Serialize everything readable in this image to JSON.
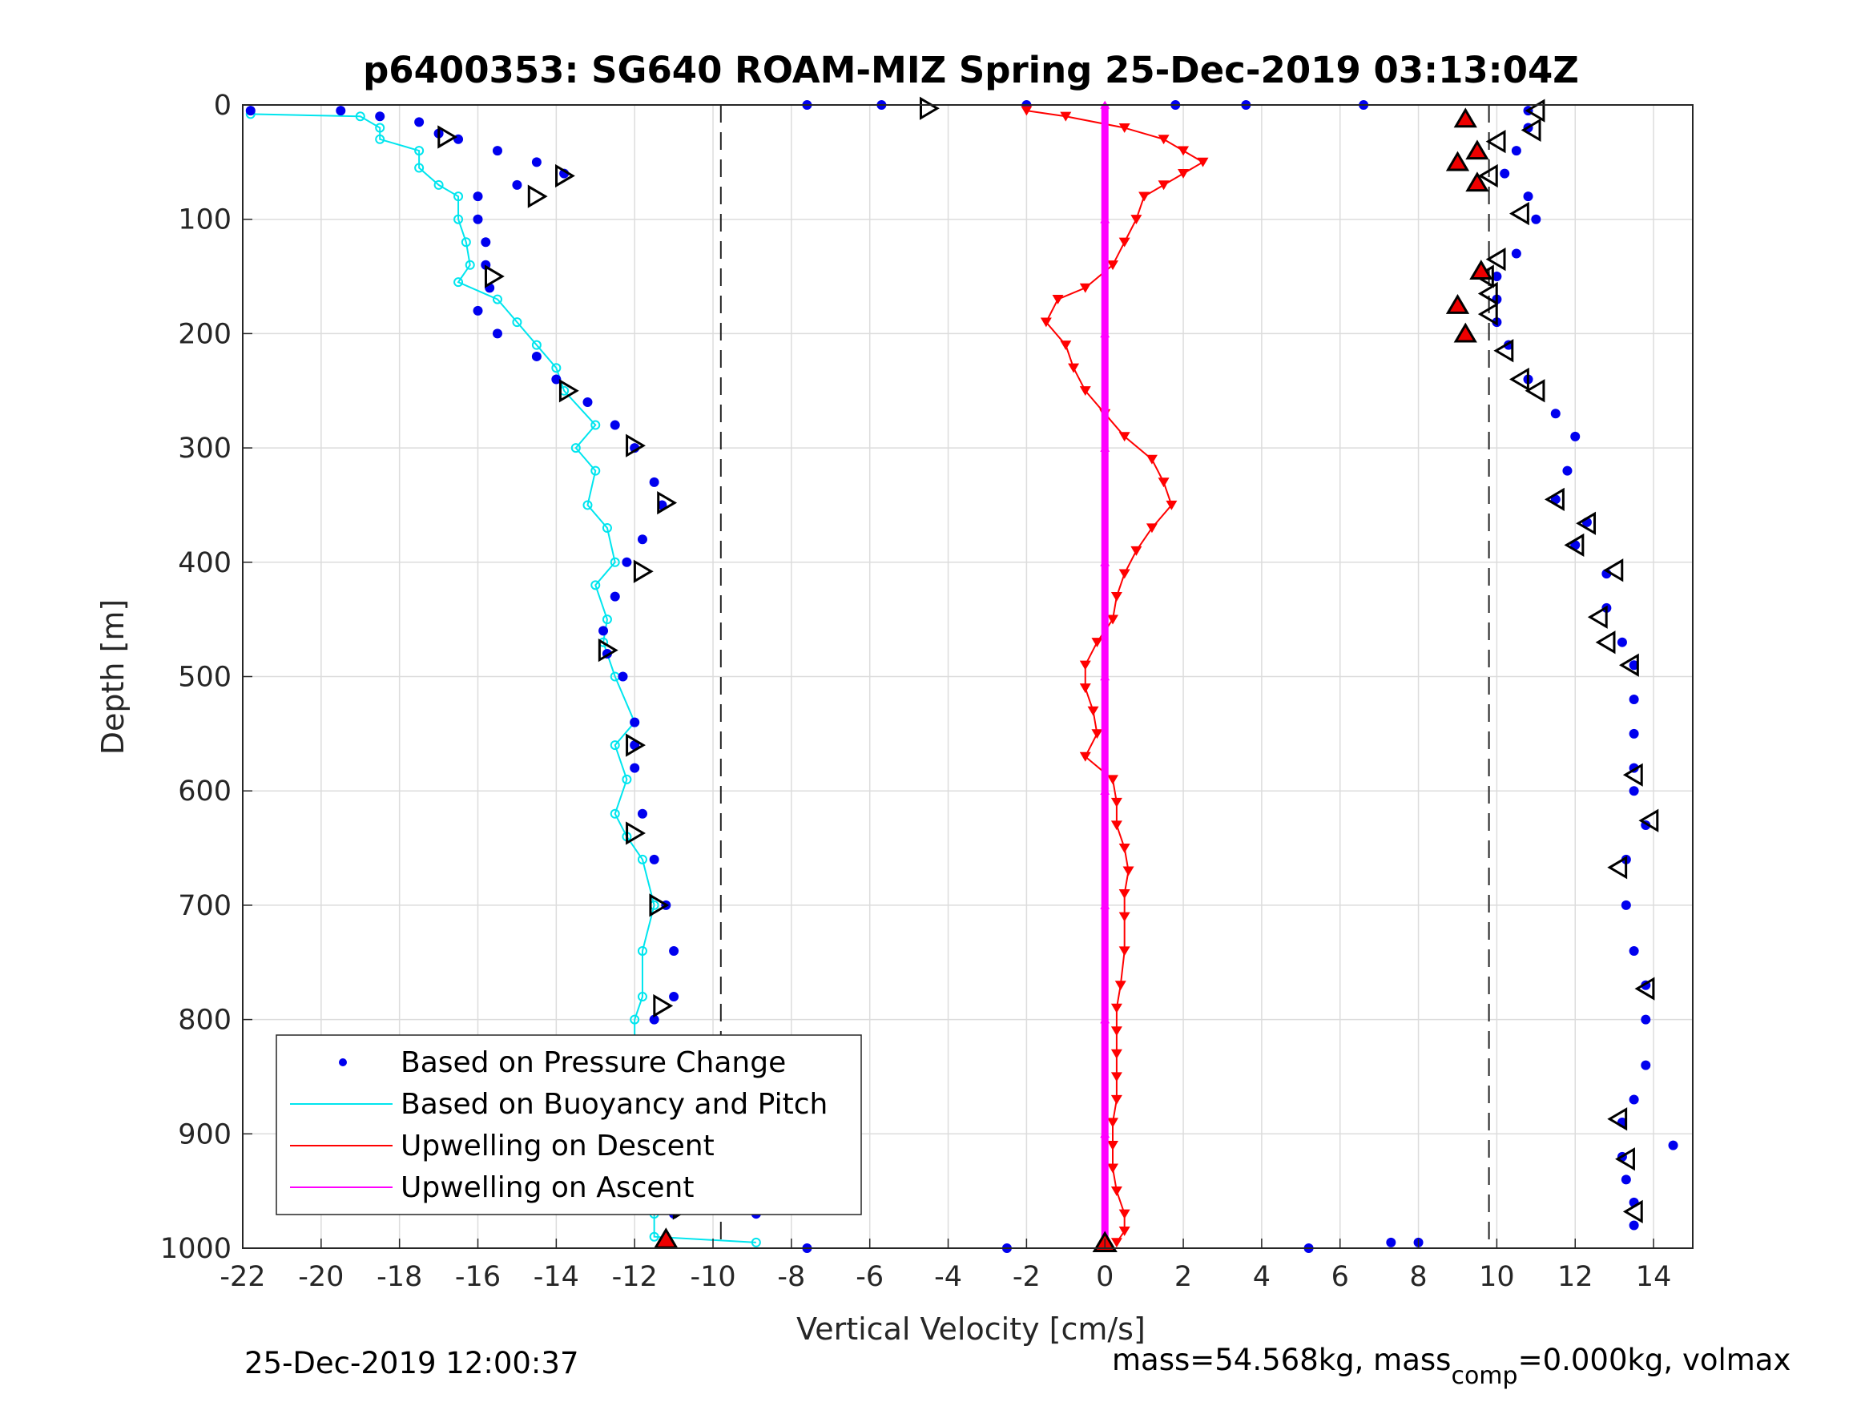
{
  "chart_data": {
    "type": "scatter",
    "title": "p6400353: SG640 ROAM-MIZ Spring 25-Dec-2019 03:13:04Z",
    "xlabel": "Vertical Velocity [cm/s]",
    "ylabel": "Depth [m]",
    "xlim": [
      -22,
      15
    ],
    "ylim": [
      1000,
      0
    ],
    "y_reversed": true,
    "grid": true,
    "x_ticks": [
      -22,
      -20,
      -18,
      -16,
      -14,
      -12,
      -10,
      -8,
      -6,
      -4,
      -2,
      0,
      2,
      4,
      6,
      8,
      10,
      12,
      14
    ],
    "x_tick_labels": [
      "-22",
      "-20",
      "-18",
      "-16",
      "-14",
      "-12",
      "-10",
      "-8",
      "-6",
      "-4",
      "-2",
      "0",
      "2",
      "4",
      "6",
      "8",
      "10",
      "12",
      "14"
    ],
    "y_ticks": [
      0,
      100,
      200,
      300,
      400,
      500,
      600,
      700,
      800,
      900,
      1000
    ],
    "y_tick_labels": [
      "0",
      "100",
      "200",
      "300",
      "400",
      "500",
      "600",
      "700",
      "800",
      "900",
      "1000"
    ],
    "reference_lines_x": [
      -9.8,
      9.8
    ],
    "legend_position": "lower-left",
    "series": [
      {
        "name": "Based on Pressure Change",
        "style": "dots",
        "color": "#0000ee",
        "descent": [
          [
            -19.5,
            5
          ],
          [
            -18.5,
            10
          ],
          [
            -17.5,
            15
          ],
          [
            -17,
            25
          ],
          [
            -16.5,
            30
          ],
          [
            -15.5,
            40
          ],
          [
            -14.5,
            50
          ],
          [
            -13.8,
            60
          ],
          [
            -15,
            70
          ],
          [
            -16,
            80
          ],
          [
            -16,
            100
          ],
          [
            -15.8,
            120
          ],
          [
            -15.8,
            140
          ],
          [
            -15.7,
            160
          ],
          [
            -16,
            180
          ],
          [
            -15.5,
            200
          ],
          [
            -14.5,
            220
          ],
          [
            -14,
            240
          ],
          [
            -13.2,
            260
          ],
          [
            -12.5,
            280
          ],
          [
            -12,
            300
          ],
          [
            -11.5,
            330
          ],
          [
            -11.3,
            350
          ],
          [
            -11.8,
            380
          ],
          [
            -12.2,
            400
          ],
          [
            -12.5,
            430
          ],
          [
            -12.8,
            460
          ],
          [
            -12.7,
            480
          ],
          [
            -12.3,
            500
          ],
          [
            -12,
            540
          ],
          [
            -12,
            560
          ],
          [
            -12,
            580
          ],
          [
            -11.8,
            620
          ],
          [
            -11.5,
            660
          ],
          [
            -11.2,
            700
          ],
          [
            -11,
            740
          ],
          [
            -11,
            780
          ],
          [
            -11.5,
            800
          ],
          [
            -11.8,
            830
          ],
          [
            -11.8,
            860
          ],
          [
            -11.5,
            900
          ],
          [
            -11.2,
            940
          ],
          [
            -11,
            970
          ],
          [
            -11.2,
            995
          ]
        ],
        "ascent": [
          [
            10.8,
            5
          ],
          [
            10.8,
            20
          ],
          [
            10.5,
            40
          ],
          [
            10.2,
            60
          ],
          [
            10.8,
            80
          ],
          [
            11,
            100
          ],
          [
            10.5,
            130
          ],
          [
            10,
            150
          ],
          [
            10,
            170
          ],
          [
            10,
            190
          ],
          [
            10.3,
            210
          ],
          [
            10.8,
            240
          ],
          [
            11.5,
            270
          ],
          [
            12,
            290
          ],
          [
            11.8,
            320
          ],
          [
            11.5,
            345
          ],
          [
            12.3,
            365
          ],
          [
            12,
            385
          ],
          [
            12.8,
            410
          ],
          [
            12.8,
            440
          ],
          [
            13.2,
            470
          ],
          [
            13.5,
            490
          ],
          [
            13.5,
            520
          ],
          [
            13.5,
            550
          ],
          [
            13.5,
            580
          ],
          [
            13.5,
            600
          ],
          [
            13.8,
            630
          ],
          [
            13.3,
            660
          ],
          [
            13.3,
            700
          ],
          [
            13.5,
            740
          ],
          [
            13.8,
            770
          ],
          [
            13.8,
            800
          ],
          [
            13.8,
            840
          ],
          [
            13.5,
            870
          ],
          [
            13.2,
            890
          ],
          [
            13.2,
            920
          ],
          [
            13.3,
            940
          ],
          [
            13.5,
            960
          ],
          [
            13.5,
            980
          ]
        ],
        "surface_outliers": [
          [
            -21.8,
            5
          ],
          [
            -7.6,
            0
          ],
          [
            -5.7,
            0
          ],
          [
            -2,
            0
          ],
          [
            1.8,
            0
          ],
          [
            3.6,
            0
          ],
          [
            6.6,
            0
          ],
          [
            -2.5,
            1000
          ],
          [
            5.2,
            1000
          ],
          [
            7.3,
            995
          ],
          [
            8,
            995
          ],
          [
            14.5,
            910
          ],
          [
            -8.9,
            970
          ],
          [
            -7.6,
            1000
          ]
        ]
      },
      {
        "name": "Based on Buoyancy and Pitch",
        "style": "line-circles",
        "color": "#00e5ee",
        "values": [
          [
            -21.8,
            8
          ],
          [
            -19,
            10
          ],
          [
            -18.5,
            20
          ],
          [
            -18.5,
            30
          ],
          [
            -17.5,
            40
          ],
          [
            -17.5,
            55
          ],
          [
            -17,
            70
          ],
          [
            -16.5,
            80
          ],
          [
            -16.5,
            100
          ],
          [
            -16.3,
            120
          ],
          [
            -16.2,
            140
          ],
          [
            -16.5,
            155
          ],
          [
            -15.5,
            170
          ],
          [
            -15,
            190
          ],
          [
            -14.5,
            210
          ],
          [
            -14,
            230
          ],
          [
            -13.8,
            250
          ],
          [
            -13,
            280
          ],
          [
            -13.5,
            300
          ],
          [
            -13,
            320
          ],
          [
            -13.2,
            350
          ],
          [
            -12.7,
            370
          ],
          [
            -12.5,
            400
          ],
          [
            -13,
            420
          ],
          [
            -12.7,
            450
          ],
          [
            -12.8,
            470
          ],
          [
            -12.5,
            500
          ],
          [
            -12,
            540
          ],
          [
            -12.5,
            560
          ],
          [
            -12.2,
            590
          ],
          [
            -12.5,
            620
          ],
          [
            -12.2,
            640
          ],
          [
            -11.8,
            660
          ],
          [
            -11.5,
            700
          ],
          [
            -11.8,
            740
          ],
          [
            -11.8,
            780
          ],
          [
            -12,
            800
          ],
          [
            -12,
            840
          ],
          [
            -11.8,
            860
          ],
          [
            -11.5,
            900
          ],
          [
            -11.5,
            940
          ],
          [
            -11.5,
            970
          ],
          [
            -11.5,
            990
          ],
          [
            -8.9,
            995
          ]
        ]
      },
      {
        "name": "Upwelling on Descent",
        "style": "line-triangles-down",
        "color": "#ff0000",
        "values": [
          [
            -2,
            5
          ],
          [
            -1,
            10
          ],
          [
            0.5,
            20
          ],
          [
            1.5,
            30
          ],
          [
            2,
            40
          ],
          [
            2.5,
            50
          ],
          [
            2,
            60
          ],
          [
            1.5,
            70
          ],
          [
            1,
            80
          ],
          [
            0.8,
            100
          ],
          [
            0.5,
            120
          ],
          [
            0.2,
            140
          ],
          [
            -0.5,
            160
          ],
          [
            -1.2,
            170
          ],
          [
            -1.5,
            190
          ],
          [
            -1,
            210
          ],
          [
            -0.8,
            230
          ],
          [
            -0.5,
            250
          ],
          [
            0,
            270
          ],
          [
            0.5,
            290
          ],
          [
            1.2,
            310
          ],
          [
            1.5,
            330
          ],
          [
            1.7,
            350
          ],
          [
            1.2,
            370
          ],
          [
            0.8,
            390
          ],
          [
            0.5,
            410
          ],
          [
            0.3,
            430
          ],
          [
            0.2,
            450
          ],
          [
            -0.2,
            470
          ],
          [
            -0.5,
            490
          ],
          [
            -0.5,
            510
          ],
          [
            -0.3,
            530
          ],
          [
            -0.2,
            550
          ],
          [
            -0.5,
            570
          ],
          [
            0.2,
            590
          ],
          [
            0.3,
            610
          ],
          [
            0.3,
            630
          ],
          [
            0.5,
            650
          ],
          [
            0.6,
            670
          ],
          [
            0.5,
            690
          ],
          [
            0.5,
            710
          ],
          [
            0.5,
            740
          ],
          [
            0.4,
            770
          ],
          [
            0.3,
            790
          ],
          [
            0.3,
            810
          ],
          [
            0.3,
            830
          ],
          [
            0.3,
            850
          ],
          [
            0.3,
            870
          ],
          [
            0.2,
            890
          ],
          [
            0.2,
            910
          ],
          [
            0.2,
            930
          ],
          [
            0.3,
            950
          ],
          [
            0.5,
            970
          ],
          [
            0.5,
            985
          ],
          [
            0.3,
            995
          ]
        ]
      },
      {
        "name": "Upwelling on Ascent",
        "style": "line-triangles-up",
        "color": "#ff00ff",
        "values": [
          [
            0,
            0
          ],
          [
            0,
            100
          ],
          [
            0,
            200
          ],
          [
            0,
            300
          ],
          [
            0,
            400
          ],
          [
            0,
            500
          ],
          [
            0,
            600
          ],
          [
            0,
            700
          ],
          [
            0,
            800
          ],
          [
            0,
            900
          ],
          [
            0,
            1000
          ]
        ]
      }
    ],
    "markers": {
      "open_triangles_descent": [
        [
          -4.5,
          3
        ],
        [
          -16.8,
          28
        ],
        [
          -13.8,
          62
        ],
        [
          -14.5,
          80
        ],
        [
          -15.6,
          150
        ],
        [
          -13.7,
          250
        ],
        [
          -12,
          298
        ],
        [
          -11.2,
          348
        ],
        [
          -11.8,
          408
        ],
        [
          -12.7,
          477
        ],
        [
          -12,
          560
        ],
        [
          -12,
          637
        ],
        [
          -11.4,
          700
        ],
        [
          -11.3,
          788
        ],
        [
          -11.5,
          877
        ],
        [
          -10.8,
          965
        ]
      ],
      "open_triangles_ascent": [
        [
          11,
          5
        ],
        [
          10.9,
          22
        ],
        [
          10,
          32
        ],
        [
          9.8,
          62
        ],
        [
          10.6,
          95
        ],
        [
          10,
          135
        ],
        [
          9.7,
          150
        ],
        [
          9.8,
          165
        ],
        [
          9.8,
          183
        ],
        [
          10.2,
          215
        ],
        [
          10.6,
          240
        ],
        [
          11,
          250
        ],
        [
          11.5,
          345
        ],
        [
          12.3,
          366
        ],
        [
          12,
          385
        ],
        [
          13,
          407
        ],
        [
          12.6,
          448
        ],
        [
          12.8,
          470
        ],
        [
          13.4,
          490
        ],
        [
          13.5,
          586
        ],
        [
          13.9,
          626
        ],
        [
          13.1,
          667
        ],
        [
          13.8,
          773
        ],
        [
          13.1,
          887
        ],
        [
          13.3,
          922
        ],
        [
          13.5,
          968
        ]
      ],
      "red_triangles_ascent": [
        [
          9.2,
          12
        ],
        [
          9.5,
          40
        ],
        [
          9,
          50
        ],
        [
          9.5,
          68
        ],
        [
          9.6,
          145
        ],
        [
          9,
          175
        ],
        [
          9.2,
          200
        ]
      ],
      "red_triangles_bottom": [
        [
          -11.2,
          995
        ],
        [
          0,
          998
        ]
      ]
    }
  },
  "legend": {
    "items": [
      {
        "label": "Based on Pressure Change",
        "color": "#0000ee",
        "style": "dot"
      },
      {
        "label": "Based on Buoyancy and Pitch",
        "color": "#00e5ee",
        "style": "line"
      },
      {
        "label": "Upwelling on Descent",
        "color": "#ff0000",
        "style": "line"
      },
      {
        "label": "Upwelling on Ascent",
        "color": "#ff00ff",
        "style": "line"
      }
    ]
  },
  "footer": {
    "timestamp": "25-Dec-2019 12:00:37",
    "mass_prefix": "mass=54.568kg, mass",
    "mass_sub": "comp",
    "mass_suffix": "=0.000kg, volmax"
  }
}
